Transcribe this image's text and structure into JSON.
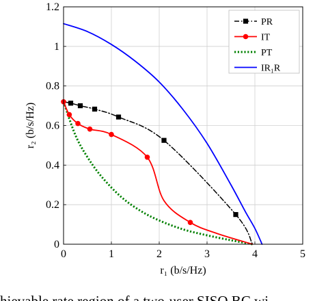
{
  "chart_data": {
    "type": "line",
    "title": "",
    "xlabel": "r₁ (b/s/Hz)",
    "ylabel": "r₂ (b/s/Hz)",
    "xlim": [
      0,
      5
    ],
    "ylim": [
      0,
      1.2
    ],
    "xticks": [
      "0",
      "1",
      "2",
      "3",
      "4",
      "5"
    ],
    "yticks": [
      "0",
      "0.2",
      "0.4",
      "0.6",
      "0.8",
      "1",
      "1.2"
    ],
    "grid": true,
    "legend_position": "top-right",
    "series": [
      {
        "name": "PR",
        "color": "#000000",
        "style": "dash-dot",
        "marker": "square",
        "x": [
          0,
          0.15,
          0.35,
          0.65,
          1.15,
          2.1,
          3.6,
          3.95
        ],
        "y": [
          0.72,
          0.713,
          0.7,
          0.683,
          0.643,
          0.525,
          0.15,
          0
        ],
        "markers_x": [
          0.15,
          0.35,
          0.65,
          1.15,
          2.1,
          3.6
        ],
        "markers_y": [
          0.713,
          0.7,
          0.683,
          0.643,
          0.525,
          0.15
        ]
      },
      {
        "name": "IT",
        "color": "#ff0000",
        "style": "solid",
        "marker": "circle",
        "x": [
          0,
          0.12,
          0.3,
          0.55,
          1.0,
          1.75,
          2.1,
          2.65,
          3.2,
          3.95
        ],
        "y": [
          0.72,
          0.655,
          0.61,
          0.582,
          0.555,
          0.44,
          0.22,
          0.11,
          0.055,
          0
        ],
        "markers_x": [
          0,
          0.12,
          0.3,
          0.55,
          1.0,
          1.75,
          2.65
        ],
        "markers_y": [
          0.72,
          0.655,
          0.61,
          0.582,
          0.555,
          0.44,
          0.11
        ]
      },
      {
        "name": "PT",
        "color": "#008000",
        "style": "dotted",
        "marker": "none",
        "x": [
          0,
          0.25,
          0.5,
          0.8,
          1.2,
          1.6,
          2.0,
          2.5,
          3.0,
          3.5,
          3.95
        ],
        "y": [
          0.72,
          0.55,
          0.44,
          0.34,
          0.24,
          0.17,
          0.12,
          0.075,
          0.045,
          0.02,
          0
        ],
        "markers_x": [],
        "markers_y": []
      },
      {
        "name": "IR₁R",
        "color": "#0000ff",
        "style": "solid",
        "marker": "none",
        "x": [
          0,
          0.5,
          1.0,
          1.5,
          2.0,
          2.5,
          3.0,
          3.5,
          3.8,
          4.0,
          4.15
        ],
        "y": [
          1.115,
          1.075,
          1.01,
          0.925,
          0.82,
          0.68,
          0.51,
          0.3,
          0.165,
          0.08,
          0
        ],
        "markers_x": [],
        "markers_y": []
      }
    ]
  },
  "caption": "hievable rate region of a two-user SISO BC wi"
}
